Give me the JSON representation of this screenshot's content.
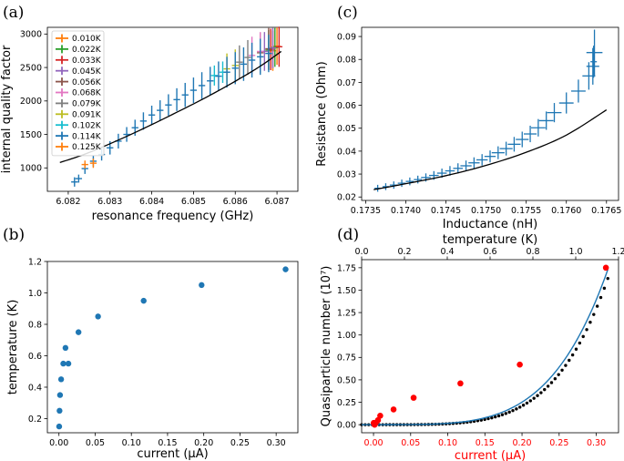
{
  "chart_data": [
    {
      "panel": "(a)",
      "type": "scatter",
      "xlabel": "resonance frequency (GHz)",
      "ylabel": "internal quality factor",
      "xlim": [
        6.0815,
        6.0875
      ],
      "ylim": [
        650,
        3100
      ],
      "xticks": [
        "6.082",
        "6.083",
        "6.084",
        "6.085",
        "6.086",
        "6.087"
      ],
      "yticks": [
        "1000",
        "1500",
        "2000",
        "2500",
        "3000"
      ],
      "legend_position": "upper left",
      "series": [
        {
          "name": "0.010K",
          "color": "#ff7f0e",
          "points": [
            {
              "x": 6.0869,
              "y": 2750,
              "ye": 300
            },
            {
              "x": 6.087,
              "y": 2820,
              "ye": 280
            }
          ]
        },
        {
          "name": "0.022K",
          "color": "#2ca02c",
          "points": [
            {
              "x": 6.0868,
              "y": 2760,
              "ye": 300
            },
            {
              "x": 6.08695,
              "y": 2800,
              "ye": 290
            }
          ]
        },
        {
          "name": "0.033K",
          "color": "#d62728",
          "points": [
            {
              "x": 6.08685,
              "y": 2770,
              "ye": 310
            },
            {
              "x": 6.08705,
              "y": 2810,
              "ye": 300
            }
          ]
        },
        {
          "name": "0.045K",
          "color": "#9467bd",
          "points": [
            {
              "x": 6.0867,
              "y": 2740,
              "ye": 290
            },
            {
              "x": 6.0869,
              "y": 2790,
              "ye": 300
            }
          ]
        },
        {
          "name": "0.056K",
          "color": "#8c564b",
          "points": [
            {
              "x": 6.0866,
              "y": 2720,
              "ye": 300
            },
            {
              "x": 6.0868,
              "y": 2780,
              "ye": 310
            }
          ]
        },
        {
          "name": "0.068K",
          "color": "#e377c2",
          "points": [
            {
              "x": 6.0864,
              "y": 2680,
              "ye": 280
            },
            {
              "x": 6.0866,
              "y": 2740,
              "ye": 290
            }
          ]
        },
        {
          "name": "0.079K",
          "color": "#7f7f7f",
          "points": [
            {
              "x": 6.0861,
              "y": 2580,
              "ye": 250
            },
            {
              "x": 6.0863,
              "y": 2650,
              "ye": 260
            }
          ]
        },
        {
          "name": "0.091K",
          "color": "#bcbd22",
          "points": [
            {
              "x": 6.0858,
              "y": 2480,
              "ye": 230
            },
            {
              "x": 6.086,
              "y": 2530,
              "ye": 240
            }
          ]
        },
        {
          "name": "0.102K",
          "color": "#17becf",
          "points": [
            {
              "x": 6.0855,
              "y": 2380,
              "ye": 150
            },
            {
              "x": 6.0857,
              "y": 2430,
              "ye": 160
            }
          ]
        },
        {
          "name": "0.114K",
          "color": "#1f77b4",
          "points": [
            {
              "x": 6.08215,
              "y": 790,
              "ye": 70
            },
            {
              "x": 6.08225,
              "y": 840,
              "ye": 60
            },
            {
              "x": 6.0824,
              "y": 990,
              "ye": 80
            },
            {
              "x": 6.0826,
              "y": 1100,
              "ye": 80
            },
            {
              "x": 6.0828,
              "y": 1200,
              "ye": 90
            },
            {
              "x": 6.083,
              "y": 1300,
              "ye": 100
            },
            {
              "x": 6.0832,
              "y": 1400,
              "ye": 110
            },
            {
              "x": 6.0834,
              "y": 1500,
              "ye": 110
            },
            {
              "x": 6.0836,
              "y": 1600,
              "ye": 120
            },
            {
              "x": 6.0838,
              "y": 1700,
              "ye": 130
            },
            {
              "x": 6.084,
              "y": 1790,
              "ye": 140
            },
            {
              "x": 6.0842,
              "y": 1860,
              "ye": 150
            },
            {
              "x": 6.0844,
              "y": 1940,
              "ye": 160
            },
            {
              "x": 6.0846,
              "y": 2020,
              "ye": 170
            },
            {
              "x": 6.0848,
              "y": 2090,
              "ye": 180
            },
            {
              "x": 6.085,
              "y": 2160,
              "ye": 190
            },
            {
              "x": 6.0852,
              "y": 2230,
              "ye": 200
            },
            {
              "x": 6.0854,
              "y": 2300,
              "ye": 210
            },
            {
              "x": 6.0856,
              "y": 2370,
              "ye": 220
            },
            {
              "x": 6.0858,
              "y": 2430,
              "ye": 230
            },
            {
              "x": 6.086,
              "y": 2490,
              "ye": 240
            },
            {
              "x": 6.0862,
              "y": 2550,
              "ye": 250
            },
            {
              "x": 6.0864,
              "y": 2610,
              "ye": 260
            },
            {
              "x": 6.0866,
              "y": 2660,
              "ye": 270
            },
            {
              "x": 6.0868,
              "y": 2710,
              "ye": 280
            }
          ]
        },
        {
          "name": "0.125K",
          "color": "#ff7f0e",
          "points": [
            {
              "x": 6.0824,
              "y": 1050,
              "ye": 60
            },
            {
              "x": 6.0826,
              "y": 1070,
              "ye": 70
            }
          ]
        }
      ],
      "fit": {
        "color": "#000000",
        "x": [
          6.0818,
          6.0825,
          6.0835,
          6.0845,
          6.0855,
          6.0865,
          6.0871
        ],
        "y": [
          1080,
          1230,
          1500,
          1800,
          2120,
          2480,
          2740
        ]
      }
    },
    {
      "panel": "(c)",
      "type": "scatter",
      "xlabel": "Inductance (nH)",
      "ylabel": "Resistance (Ohm)",
      "xlim": [
        0.17345,
        0.17665
      ],
      "ylim": [
        0.0185,
        0.094
      ],
      "xticks": [
        "0.1735",
        "0.1740",
        "0.1745",
        "0.1750",
        "0.1755",
        "0.1760",
        "0.1765"
      ],
      "yticks": [
        "0.02",
        "0.03",
        "0.04",
        "0.05",
        "0.06",
        "0.07",
        "0.08",
        "0.09"
      ],
      "series": [
        {
          "name": "",
          "color": "#1f77b4",
          "points": [
            {
              "x": 0.17365,
              "y": 0.0238,
              "xe": 4e-05,
              "ye": 0.0015
            },
            {
              "x": 0.17375,
              "y": 0.0245,
              "xe": 4e-05,
              "ye": 0.0015
            },
            {
              "x": 0.17385,
              "y": 0.0252,
              "xe": 5e-05,
              "ye": 0.0016
            },
            {
              "x": 0.17395,
              "y": 0.026,
              "xe": 5e-05,
              "ye": 0.0016
            },
            {
              "x": 0.17405,
              "y": 0.0268,
              "xe": 5e-05,
              "ye": 0.0017
            },
            {
              "x": 0.17415,
              "y": 0.0276,
              "xe": 5e-05,
              "ye": 0.0017
            },
            {
              "x": 0.17425,
              "y": 0.0285,
              "xe": 6e-05,
              "ye": 0.0018
            },
            {
              "x": 0.17435,
              "y": 0.0294,
              "xe": 6e-05,
              "ye": 0.0019
            },
            {
              "x": 0.17445,
              "y": 0.0304,
              "xe": 6e-05,
              "ye": 0.002
            },
            {
              "x": 0.17455,
              "y": 0.0314,
              "xe": 6e-05,
              "ye": 0.0021
            },
            {
              "x": 0.17465,
              "y": 0.0325,
              "xe": 6e-05,
              "ye": 0.0022
            },
            {
              "x": 0.17475,
              "y": 0.0336,
              "xe": 7e-05,
              "ye": 0.0023
            },
            {
              "x": 0.17485,
              "y": 0.0349,
              "xe": 7e-05,
              "ye": 0.0024
            },
            {
              "x": 0.17495,
              "y": 0.0362,
              "xe": 7e-05,
              "ye": 0.0025
            },
            {
              "x": 0.17505,
              "y": 0.0377,
              "xe": 7e-05,
              "ye": 0.0026
            },
            {
              "x": 0.17515,
              "y": 0.0393,
              "xe": 8e-05,
              "ye": 0.0028
            },
            {
              "x": 0.17525,
              "y": 0.0411,
              "xe": 8e-05,
              "ye": 0.003
            },
            {
              "x": 0.17535,
              "y": 0.043,
              "xe": 8e-05,
              "ye": 0.0032
            },
            {
              "x": 0.17545,
              "y": 0.0451,
              "xe": 8e-05,
              "ye": 0.0034
            },
            {
              "x": 0.17555,
              "y": 0.0475,
              "xe": 8e-05,
              "ye": 0.0036
            },
            {
              "x": 0.17565,
              "y": 0.0502,
              "xe": 9e-05,
              "ye": 0.0038
            },
            {
              "x": 0.17575,
              "y": 0.0533,
              "xe": 9e-05,
              "ye": 0.004
            },
            {
              "x": 0.17585,
              "y": 0.0568,
              "xe": 9e-05,
              "ye": 0.0042
            },
            {
              "x": 0.176,
              "y": 0.061,
              "xe": 9e-05,
              "ye": 0.0046
            },
            {
              "x": 0.17615,
              "y": 0.0662,
              "xe": 9e-05,
              "ye": 0.005
            },
            {
              "x": 0.17628,
              "y": 0.0728,
              "xe": 8e-05,
              "ye": 0.006
            },
            {
              "x": 0.17633,
              "y": 0.077,
              "xe": 8e-05,
              "ye": 0.008
            },
            {
              "x": 0.17635,
              "y": 0.083,
              "xe": 0.0001,
              "ye": 0.01
            },
            {
              "x": 0.17634,
              "y": 0.079,
              "xe": 4e-05,
              "ye": 0.007
            }
          ]
        }
      ],
      "fit": {
        "color": "#000000",
        "x": [
          0.1736,
          0.174,
          0.1745,
          0.175,
          0.1755,
          0.176,
          0.1765
        ],
        "y": [
          0.0232,
          0.0258,
          0.0293,
          0.0338,
          0.0395,
          0.047,
          0.058
        ]
      }
    },
    {
      "panel": "(b)",
      "type": "scatter",
      "xlabel": "current (μA)",
      "ylabel": "temperature (K)",
      "xlim": [
        -0.016,
        0.33
      ],
      "ylim": [
        0.11,
        1.2
      ],
      "xticks": [
        "0.00",
        "0.05",
        "0.10",
        "0.15",
        "0.20",
        "0.25",
        "0.30"
      ],
      "yticks": [
        "0.2",
        "0.4",
        "0.6",
        "0.8",
        "1.0",
        "1.2"
      ],
      "series": [
        {
          "name": "",
          "color": "#1f77b4",
          "x": [
            0.0003,
            0.0008,
            0.0015,
            0.003,
            0.006,
            0.009,
            0.013,
            0.027,
            0.054,
            0.117,
            0.197,
            0.313
          ],
          "y": [
            0.15,
            0.25,
            0.35,
            0.45,
            0.55,
            0.65,
            0.55,
            0.75,
            0.85,
            0.95,
            1.05,
            1.15
          ]
        }
      ]
    },
    {
      "panel": "(d)",
      "type": "scatter",
      "xlabel": "current (μA)",
      "xlabel_color": "#ff0000",
      "x2label": "temperature (K)",
      "ylabel": "Quasiparticle number (10⁷)",
      "xlim": [
        -0.016,
        0.33
      ],
      "x2lim": [
        0.0,
        1.2
      ],
      "ylim": [
        -0.09,
        1.84
      ],
      "xticks": [
        "0.00",
        "0.05",
        "0.10",
        "0.15",
        "0.20",
        "0.25",
        "0.30"
      ],
      "x2ticks": [
        "0.0",
        "0.2",
        "0.4",
        "0.6",
        "0.8",
        "1.0",
        "1.2"
      ],
      "yticks": [
        "0.00",
        "0.25",
        "0.50",
        "0.75",
        "1.00",
        "1.25",
        "1.50",
        "1.75"
      ],
      "series": [
        {
          "name": "",
          "color": "#ff0000",
          "x": [
            0.0003,
            0.0008,
            0.0015,
            0.003,
            0.006,
            0.009,
            0.027,
            0.054,
            0.117,
            0.197,
            0.313
          ],
          "y": [
            0.02,
            0.01,
            0.0,
            0.02,
            0.05,
            0.1,
            0.17,
            0.3,
            0.46,
            0.67,
            1.75
          ]
        }
      ],
      "model_curve": {
        "color": "#1f77b4",
        "form": "power",
        "exponent": 4.5,
        "t_max": 1.15,
        "n_max": 1.73
      },
      "dotted_curve": {
        "color": "#000000",
        "form": "power",
        "exponent": 4.8,
        "t_max": 1.15,
        "n_max": 1.63,
        "points": 70
      }
    }
  ]
}
